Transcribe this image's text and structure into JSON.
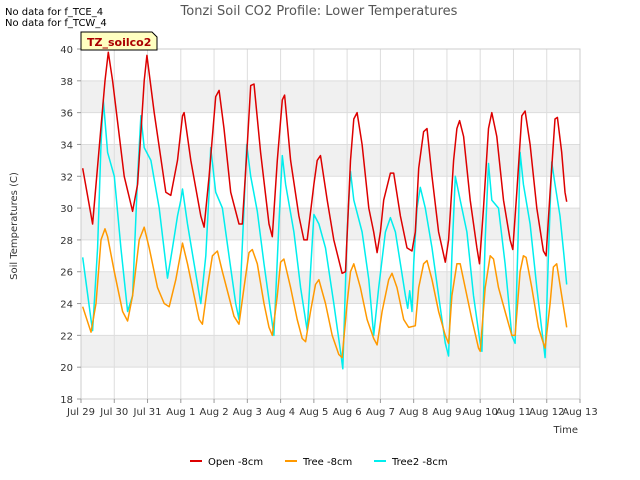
{
  "notes": [
    "No data for f_TCE_4",
    "No data for f_TCW_4"
  ],
  "colors": {
    "open": "#dd0000",
    "tree": "#ff9900",
    "tree2": "#00eeee",
    "band": "#f0f0f0",
    "grid": "#dddddd",
    "site_box_fill": "#ffffc0",
    "site_box_text": "#aa0000"
  },
  "chart_data": {
    "type": "line",
    "title": "Tonzi Soil CO2 Profile: Lower Temperatures",
    "xlabel": "Time",
    "ylabel": "Soil Temperatures (C)",
    "site_label": "TZ_soilco2",
    "ylim": [
      18,
      40
    ],
    "y_ticks": [
      18,
      20,
      22,
      24,
      26,
      28,
      30,
      32,
      34,
      36,
      38,
      40
    ],
    "x_unit": "days since Jul 29",
    "xlim": [
      0,
      15
    ],
    "x_ticks": [
      {
        "x": 0,
        "label": "Jul 29"
      },
      {
        "x": 1,
        "label": "Jul 30"
      },
      {
        "x": 2,
        "label": "Jul 31"
      },
      {
        "x": 3,
        "label": "Aug 1"
      },
      {
        "x": 4,
        "label": "Aug 2"
      },
      {
        "x": 5,
        "label": "Aug 3"
      },
      {
        "x": 6,
        "label": "Aug 4"
      },
      {
        "x": 7,
        "label": "Aug 5"
      },
      {
        "x": 8,
        "label": "Aug 6"
      },
      {
        "x": 9,
        "label": "Aug 7"
      },
      {
        "x": 10,
        "label": "Aug 8"
      },
      {
        "x": 11,
        "label": "Aug 9"
      },
      {
        "x": 12,
        "label": "Aug 10"
      },
      {
        "x": 13,
        "label": "Aug 11"
      },
      {
        "x": 14,
        "label": "Aug 12"
      },
      {
        "x": 15,
        "label": "Aug 13"
      }
    ],
    "grid": true,
    "legend_position": "bottom",
    "series": [
      {
        "name": "Open -8cm",
        "color": "#dd0000",
        "points": [
          [
            0.05,
            32.5
          ],
          [
            0.35,
            29.0
          ],
          [
            0.72,
            38.0
          ],
          [
            0.82,
            39.8
          ],
          [
            0.95,
            38.0
          ],
          [
            1.3,
            32.0
          ],
          [
            1.55,
            29.8
          ],
          [
            1.7,
            31.5
          ],
          [
            1.9,
            38.0
          ],
          [
            1.98,
            39.6
          ],
          [
            2.2,
            36.0
          ],
          [
            2.55,
            31.0
          ],
          [
            2.7,
            30.8
          ],
          [
            2.9,
            33.0
          ],
          [
            3.05,
            35.8
          ],
          [
            3.1,
            36.0
          ],
          [
            3.3,
            33.0
          ],
          [
            3.6,
            29.5
          ],
          [
            3.7,
            28.8
          ],
          [
            3.85,
            32.0
          ],
          [
            4.05,
            37.0
          ],
          [
            4.15,
            37.4
          ],
          [
            4.3,
            35.0
          ],
          [
            4.5,
            31.0
          ],
          [
            4.75,
            29.0
          ],
          [
            4.85,
            29.0
          ],
          [
            5.0,
            34.0
          ],
          [
            5.1,
            37.7
          ],
          [
            5.2,
            37.8
          ],
          [
            5.4,
            33.5
          ],
          [
            5.65,
            29.0
          ],
          [
            5.75,
            28.2
          ],
          [
            5.9,
            33.0
          ],
          [
            6.05,
            36.8
          ],
          [
            6.12,
            37.1
          ],
          [
            6.3,
            33.0
          ],
          [
            6.55,
            29.5
          ],
          [
            6.7,
            28.0
          ],
          [
            6.8,
            28.0
          ],
          [
            7.0,
            31.5
          ],
          [
            7.1,
            33.0
          ],
          [
            7.2,
            33.3
          ],
          [
            7.4,
            30.5
          ],
          [
            7.6,
            28.0
          ],
          [
            7.85,
            25.9
          ],
          [
            7.95,
            26.0
          ],
          [
            8.1,
            33.0
          ],
          [
            8.2,
            35.6
          ],
          [
            8.3,
            36.0
          ],
          [
            8.45,
            34.0
          ],
          [
            8.65,
            30.0
          ],
          [
            8.8,
            28.5
          ],
          [
            8.9,
            27.2
          ],
          [
            9.0,
            28.5
          ],
          [
            9.1,
            30.5
          ],
          [
            9.3,
            32.2
          ],
          [
            9.4,
            32.2
          ],
          [
            9.6,
            29.5
          ],
          [
            9.8,
            27.5
          ],
          [
            9.95,
            27.3
          ],
          [
            10.05,
            28.5
          ],
          [
            10.15,
            32.5
          ],
          [
            10.3,
            34.8
          ],
          [
            10.4,
            35.0
          ],
          [
            10.55,
            32.0
          ],
          [
            10.75,
            28.5
          ],
          [
            10.95,
            26.6
          ],
          [
            11.05,
            28.0
          ],
          [
            11.2,
            33.0
          ],
          [
            11.3,
            35.0
          ],
          [
            11.38,
            35.5
          ],
          [
            11.5,
            34.5
          ],
          [
            11.7,
            30.5
          ],
          [
            11.9,
            27.5
          ],
          [
            11.98,
            26.5
          ],
          [
            12.1,
            30.0
          ],
          [
            12.25,
            35.0
          ],
          [
            12.35,
            36.0
          ],
          [
            12.5,
            34.5
          ],
          [
            12.7,
            30.5
          ],
          [
            12.9,
            28.0
          ],
          [
            12.98,
            27.4
          ],
          [
            13.1,
            31.0
          ],
          [
            13.25,
            35.8
          ],
          [
            13.35,
            36.1
          ],
          [
            13.5,
            34.0
          ],
          [
            13.7,
            30.0
          ],
          [
            13.9,
            27.3
          ],
          [
            13.98,
            27.0
          ],
          [
            14.1,
            31.0
          ],
          [
            14.25,
            35.6
          ],
          [
            14.32,
            35.7
          ],
          [
            14.45,
            33.5
          ],
          [
            14.55,
            31.0
          ],
          [
            14.6,
            30.4
          ]
        ]
      },
      {
        "name": "Tree -8cm",
        "color": "#ff9900",
        "points": [
          [
            0.05,
            23.8
          ],
          [
            0.3,
            22.2
          ],
          [
            0.45,
            24.0
          ],
          [
            0.6,
            28.0
          ],
          [
            0.72,
            28.7
          ],
          [
            0.8,
            28.2
          ],
          [
            1.0,
            26.0
          ],
          [
            1.25,
            23.5
          ],
          [
            1.4,
            22.9
          ],
          [
            1.55,
            24.5
          ],
          [
            1.75,
            28.0
          ],
          [
            1.9,
            28.8
          ],
          [
            2.05,
            27.5
          ],
          [
            2.3,
            25.0
          ],
          [
            2.5,
            24.0
          ],
          [
            2.65,
            23.8
          ],
          [
            2.85,
            25.5
          ],
          [
            3.0,
            27.2
          ],
          [
            3.05,
            27.8
          ],
          [
            3.2,
            26.5
          ],
          [
            3.4,
            24.5
          ],
          [
            3.55,
            23.0
          ],
          [
            3.65,
            22.7
          ],
          [
            3.8,
            25.0
          ],
          [
            3.95,
            27.0
          ],
          [
            4.1,
            27.3
          ],
          [
            4.25,
            26.0
          ],
          [
            4.5,
            24.0
          ],
          [
            4.6,
            23.2
          ],
          [
            4.75,
            22.7
          ],
          [
            4.9,
            25.0
          ],
          [
            5.05,
            27.2
          ],
          [
            5.15,
            27.4
          ],
          [
            5.3,
            26.5
          ],
          [
            5.5,
            24.0
          ],
          [
            5.65,
            22.5
          ],
          [
            5.75,
            22.0
          ],
          [
            5.9,
            24.5
          ],
          [
            6.0,
            26.6
          ],
          [
            6.1,
            26.8
          ],
          [
            6.3,
            25.0
          ],
          [
            6.5,
            23.0
          ],
          [
            6.65,
            21.8
          ],
          [
            6.75,
            21.6
          ],
          [
            6.9,
            23.5
          ],
          [
            7.05,
            25.2
          ],
          [
            7.15,
            25.5
          ],
          [
            7.35,
            24.0
          ],
          [
            7.55,
            22.0
          ],
          [
            7.75,
            20.8
          ],
          [
            7.85,
            20.6
          ],
          [
            8.0,
            24.0
          ],
          [
            8.1,
            26.0
          ],
          [
            8.2,
            26.5
          ],
          [
            8.4,
            25.0
          ],
          [
            8.6,
            23.0
          ],
          [
            8.8,
            21.8
          ],
          [
            8.9,
            21.4
          ],
          [
            9.05,
            23.5
          ],
          [
            9.25,
            25.5
          ],
          [
            9.35,
            25.9
          ],
          [
            9.5,
            25.0
          ],
          [
            9.7,
            23.0
          ],
          [
            9.85,
            22.5
          ],
          [
            10.05,
            22.6
          ],
          [
            10.15,
            25.0
          ],
          [
            10.3,
            26.5
          ],
          [
            10.4,
            26.7
          ],
          [
            10.55,
            25.5
          ],
          [
            10.75,
            23.5
          ],
          [
            10.95,
            22.0
          ],
          [
            11.05,
            21.5
          ],
          [
            11.15,
            24.5
          ],
          [
            11.3,
            26.5
          ],
          [
            11.4,
            26.5
          ],
          [
            11.55,
            25.0
          ],
          [
            11.75,
            23.0
          ],
          [
            11.95,
            21.2
          ],
          [
            12.0,
            21.0
          ],
          [
            12.15,
            25.0
          ],
          [
            12.3,
            27.0
          ],
          [
            12.4,
            26.8
          ],
          [
            12.55,
            25.0
          ],
          [
            12.75,
            23.5
          ],
          [
            12.95,
            22.0
          ],
          [
            13.05,
            22.0
          ],
          [
            13.2,
            26.0
          ],
          [
            13.3,
            27.0
          ],
          [
            13.38,
            26.9
          ],
          [
            13.55,
            25.0
          ],
          [
            13.75,
            22.5
          ],
          [
            13.9,
            21.5
          ],
          [
            13.95,
            21.2
          ],
          [
            14.1,
            24.0
          ],
          [
            14.2,
            26.3
          ],
          [
            14.3,
            26.5
          ],
          [
            14.45,
            24.5
          ],
          [
            14.55,
            23.2
          ],
          [
            14.6,
            22.5
          ]
        ]
      },
      {
        "name": "Tree2 -8cm",
        "color": "#00eeee",
        "points": [
          [
            0.05,
            26.9
          ],
          [
            0.3,
            23.0
          ],
          [
            0.35,
            22.3
          ],
          [
            0.5,
            27.5
          ],
          [
            0.6,
            34.0
          ],
          [
            0.67,
            36.8
          ],
          [
            0.8,
            33.5
          ],
          [
            1.0,
            32.0
          ],
          [
            1.2,
            27.5
          ],
          [
            1.4,
            23.5
          ],
          [
            1.55,
            24.5
          ],
          [
            1.7,
            32.0
          ],
          [
            1.8,
            35.8
          ],
          [
            1.9,
            33.8
          ],
          [
            2.1,
            33.0
          ],
          [
            2.35,
            30.0
          ],
          [
            2.6,
            25.6
          ],
          [
            2.75,
            27.5
          ],
          [
            2.9,
            29.5
          ],
          [
            3.0,
            30.5
          ],
          [
            3.05,
            31.2
          ],
          [
            3.2,
            29.0
          ],
          [
            3.4,
            26.5
          ],
          [
            3.6,
            24.0
          ],
          [
            3.75,
            27.0
          ],
          [
            3.85,
            31.0
          ],
          [
            3.9,
            33.8
          ],
          [
            4.05,
            31.0
          ],
          [
            4.25,
            30.0
          ],
          [
            4.45,
            27.0
          ],
          [
            4.65,
            24.0
          ],
          [
            4.75,
            23.0
          ],
          [
            4.9,
            30.0
          ],
          [
            4.98,
            34.0
          ],
          [
            5.1,
            32.0
          ],
          [
            5.3,
            29.8
          ],
          [
            5.5,
            26.5
          ],
          [
            5.7,
            23.5
          ],
          [
            5.8,
            22.0
          ],
          [
            5.95,
            29.0
          ],
          [
            6.05,
            33.3
          ],
          [
            6.15,
            31.5
          ],
          [
            6.4,
            28.5
          ],
          [
            6.6,
            25.0
          ],
          [
            6.8,
            22.3
          ],
          [
            6.9,
            26.0
          ],
          [
            7.0,
            29.6
          ],
          [
            7.15,
            29.0
          ],
          [
            7.35,
            27.5
          ],
          [
            7.6,
            24.0
          ],
          [
            7.8,
            21.0
          ],
          [
            7.87,
            19.9
          ],
          [
            8.0,
            28.5
          ],
          [
            8.1,
            32.3
          ],
          [
            8.2,
            30.5
          ],
          [
            8.45,
            28.5
          ],
          [
            8.65,
            25.5
          ],
          [
            8.8,
            22.0
          ],
          [
            8.95,
            25.0
          ],
          [
            9.15,
            28.5
          ],
          [
            9.3,
            29.4
          ],
          [
            9.45,
            28.5
          ],
          [
            9.6,
            26.5
          ],
          [
            9.75,
            24.5
          ],
          [
            9.82,
            23.7
          ],
          [
            9.88,
            24.8
          ],
          [
            9.95,
            23.5
          ],
          [
            10.0,
            26.5
          ],
          [
            10.1,
            30.0
          ],
          [
            10.2,
            31.3
          ],
          [
            10.35,
            30.0
          ],
          [
            10.55,
            27.5
          ],
          [
            10.75,
            24.5
          ],
          [
            10.95,
            21.5
          ],
          [
            11.05,
            20.7
          ],
          [
            11.15,
            27.0
          ],
          [
            11.25,
            32.0
          ],
          [
            11.4,
            30.5
          ],
          [
            11.6,
            28.5
          ],
          [
            11.8,
            24.5
          ],
          [
            12.0,
            21.5
          ],
          [
            12.05,
            21.0
          ],
          [
            12.15,
            28.0
          ],
          [
            12.25,
            32.8
          ],
          [
            12.35,
            30.5
          ],
          [
            12.55,
            30.0
          ],
          [
            12.75,
            26.5
          ],
          [
            12.95,
            22.0
          ],
          [
            13.05,
            21.5
          ],
          [
            13.15,
            29.0
          ],
          [
            13.2,
            33.5
          ],
          [
            13.3,
            31.5
          ],
          [
            13.5,
            29.0
          ],
          [
            13.7,
            25.0
          ],
          [
            13.9,
            21.5
          ],
          [
            13.95,
            20.6
          ],
          [
            14.05,
            27.0
          ],
          [
            14.15,
            32.9
          ],
          [
            14.25,
            31.5
          ],
          [
            14.4,
            29.5
          ],
          [
            14.52,
            27.0
          ],
          [
            14.6,
            25.2
          ]
        ]
      }
    ]
  }
}
